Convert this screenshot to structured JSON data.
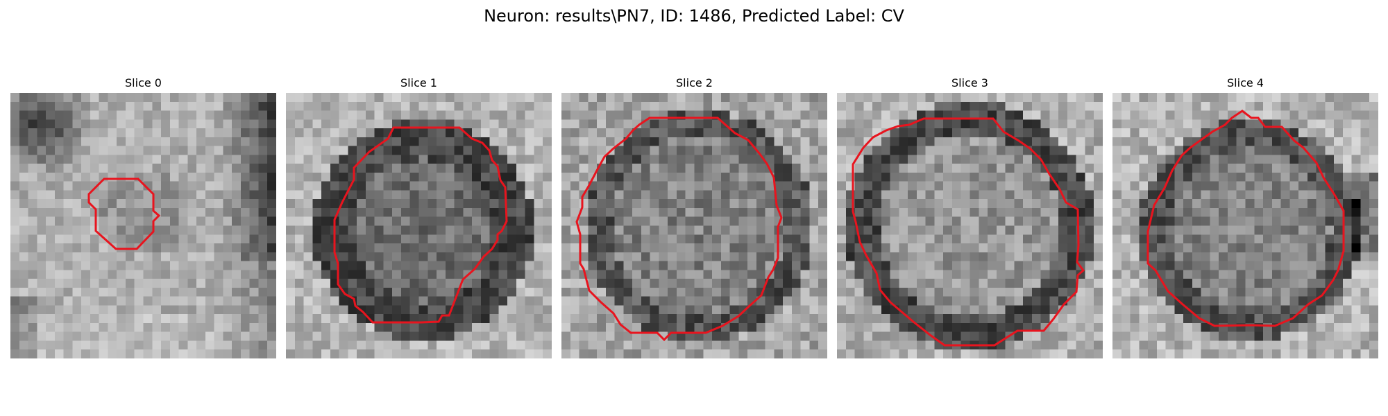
{
  "figure": {
    "title": "Neuron: results\\PN7, ID: 1486, Predicted Label: CV"
  },
  "slices": [
    {
      "title": "Slice 0"
    },
    {
      "title": "Slice 1"
    },
    {
      "title": "Slice 2"
    },
    {
      "title": "Slice 3"
    },
    {
      "title": "Slice 4"
    }
  ],
  "colors": {
    "contour": "#e8141e",
    "background": "#ffffff"
  }
}
